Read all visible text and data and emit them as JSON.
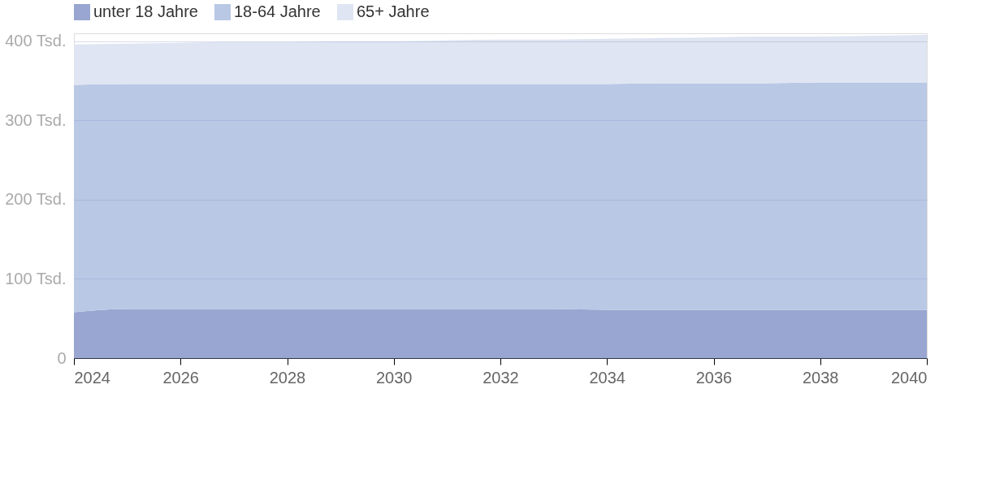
{
  "chart_data": {
    "type": "area",
    "stacked": true,
    "x": [
      2024,
      2025,
      2026,
      2027,
      2028,
      2029,
      2030,
      2031,
      2032,
      2033,
      2034,
      2035,
      2036,
      2037,
      2038,
      2039,
      2040
    ],
    "series": [
      {
        "name": "unter 18 Jahre",
        "color": "#98a6d1",
        "values": [
          58,
          62,
          62,
          62,
          62,
          62,
          62,
          62,
          62,
          62,
          61,
          61,
          61,
          61,
          61,
          61,
          61
        ]
      },
      {
        "name": "18-64 Jahre",
        "color": "#b9c8e5",
        "values": [
          287,
          284,
          284,
          284,
          284,
          284,
          284,
          284,
          284,
          284,
          285,
          286,
          286,
          286,
          287,
          287,
          287
        ]
      },
      {
        "name": "65+ Jahre",
        "color": "#dfe5f2",
        "values": [
          51,
          51,
          52,
          53,
          53,
          54,
          54,
          55,
          56,
          56,
          57,
          57,
          58,
          59,
          58,
          59,
          60
        ]
      }
    ],
    "xlim": [
      2024,
      2040
    ],
    "xticks": [
      2024,
      2026,
      2028,
      2030,
      2032,
      2034,
      2036,
      2038,
      2040
    ],
    "ylim": [
      0,
      410
    ],
    "yticks": [
      0,
      {
        "value": 100,
        "label": "100 Tsd."
      },
      {
        "value": 200,
        "label": "200 Tsd."
      },
      {
        "value": 300,
        "label": "300 Tsd."
      },
      {
        "value": 400,
        "label": "400 Tsd."
      }
    ],
    "grid": "y",
    "legend": "top left"
  }
}
